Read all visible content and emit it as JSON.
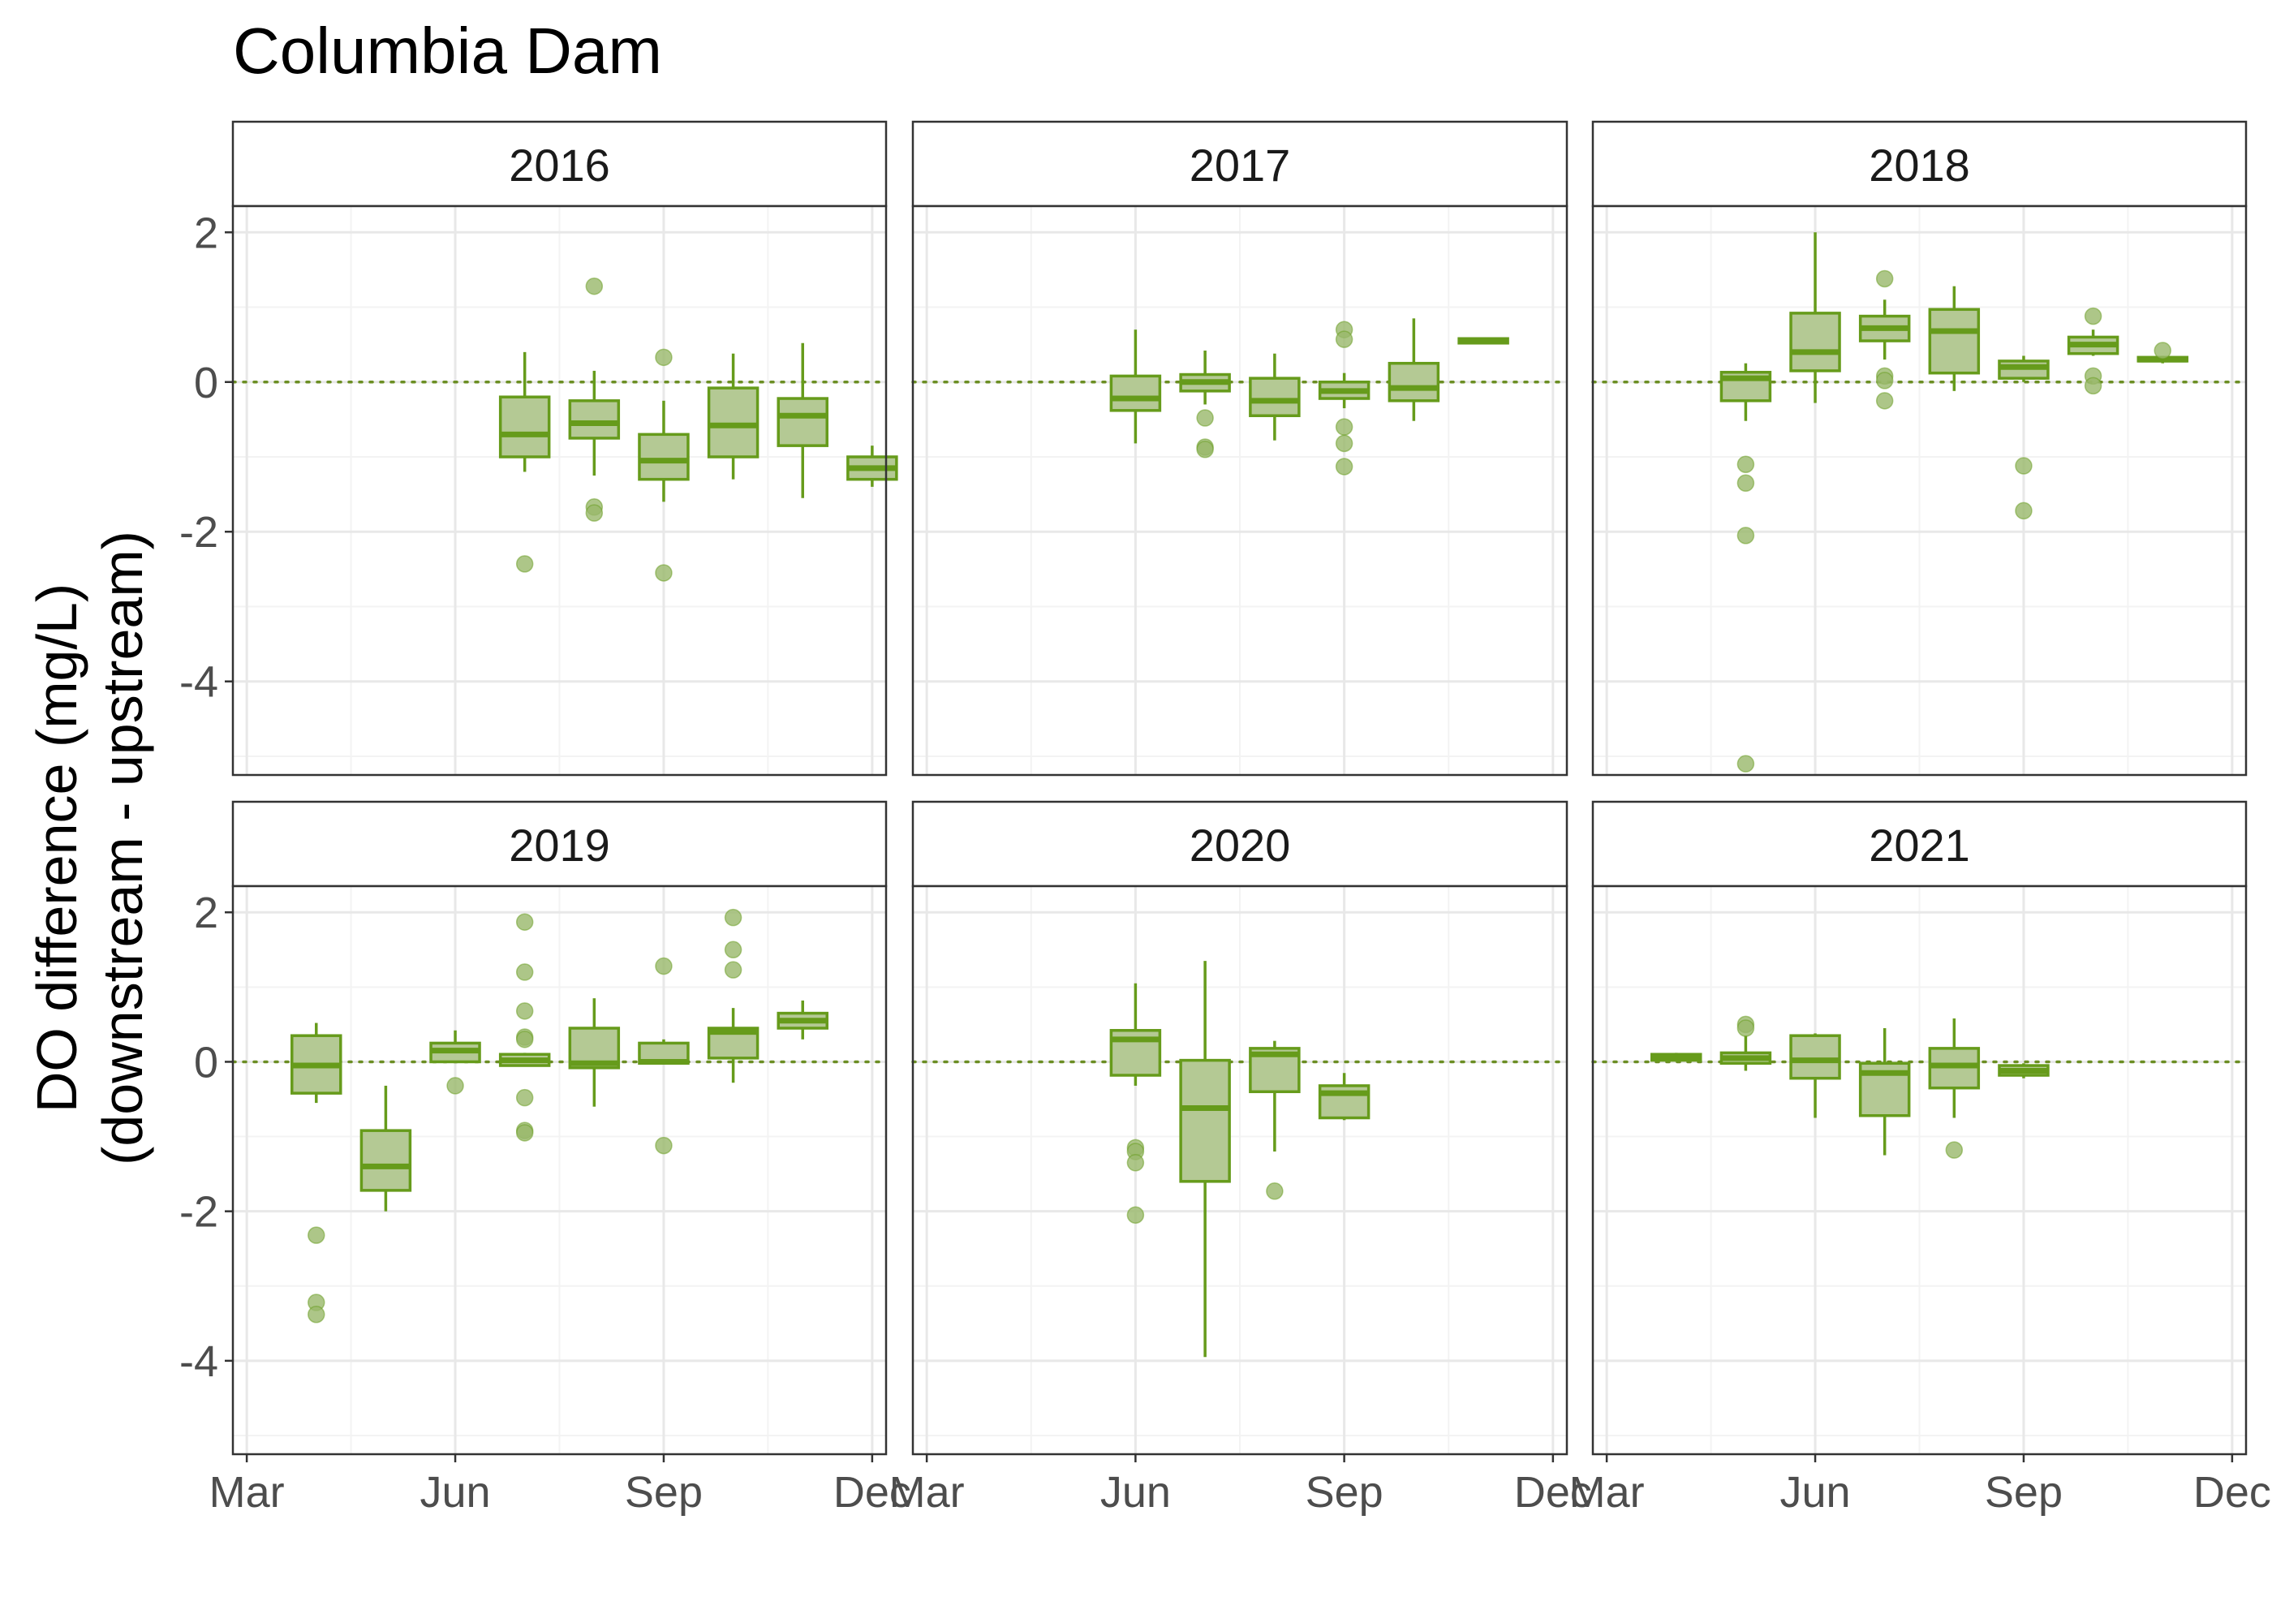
{
  "chart_data": {
    "type": "box",
    "title": "Columbia Dam",
    "ylabel_line1": "DO difference (mg/L)",
    "ylabel_line2": "(downstream - upstream)",
    "xlabel": "",
    "x_ticks": [
      "Mar",
      "Jun",
      "Sep",
      "Dec"
    ],
    "x_tick_months": [
      3,
      6,
      9,
      12
    ],
    "xlim_months": [
      2.8,
      12.2
    ],
    "y_ticks": [
      2,
      0,
      -2,
      -4
    ],
    "y_tick_labels": [
      "2",
      "0",
      "-2",
      "-4"
    ],
    "ylim": [
      -5.25,
      2.35
    ],
    "reference_line": 0,
    "grid": true,
    "colors": {
      "box_stroke": "#669b1b",
      "box_fill": "#b4c994",
      "outlier": "#98b86a",
      "reference_line": "#6b8e23",
      "strip_fill": "#ffffff",
      "grid_major": "#e8e8e8",
      "grid_minor": "#f3f3f3",
      "panel_border": "#333333"
    },
    "panels": [
      {
        "year": "2016",
        "boxes": [
          {
            "month": 7.0,
            "whisker_low": -1.2,
            "q1": -1.0,
            "median": -0.7,
            "q3": -0.2,
            "whisker_high": 0.4,
            "outliers": [
              -2.43
            ]
          },
          {
            "month": 8.0,
            "whisker_low": -1.25,
            "q1": -0.75,
            "median": -0.55,
            "q3": -0.25,
            "whisker_high": 0.15,
            "outliers": [
              1.28,
              -1.67,
              -1.75
            ]
          },
          {
            "month": 9.0,
            "whisker_low": -1.6,
            "q1": -1.3,
            "median": -1.05,
            "q3": -0.7,
            "whisker_high": -0.25,
            "outliers": [
              0.33,
              -2.55
            ]
          },
          {
            "month": 10.0,
            "whisker_low": -1.3,
            "q1": -1.0,
            "median": -0.58,
            "q3": -0.08,
            "whisker_high": 0.38,
            "outliers": []
          },
          {
            "month": 11.0,
            "whisker_low": -1.55,
            "q1": -0.85,
            "median": -0.45,
            "q3": -0.22,
            "whisker_high": 0.52,
            "outliers": []
          },
          {
            "month": 12.0,
            "whisker_low": -1.4,
            "q1": -1.3,
            "median": -1.15,
            "q3": -1.0,
            "whisker_high": -0.85,
            "outliers": []
          }
        ]
      },
      {
        "year": "2017",
        "boxes": [
          {
            "month": 6.0,
            "whisker_low": -0.82,
            "q1": -0.38,
            "median": -0.22,
            "q3": 0.08,
            "whisker_high": 0.7,
            "outliers": []
          },
          {
            "month": 7.0,
            "whisker_low": -0.3,
            "q1": -0.12,
            "median": 0.0,
            "q3": 0.1,
            "whisker_high": 0.42,
            "outliers": [
              -0.48,
              -0.87,
              -0.9
            ]
          },
          {
            "month": 8.0,
            "whisker_low": -0.78,
            "q1": -0.45,
            "median": -0.25,
            "q3": 0.05,
            "whisker_high": 0.38,
            "outliers": []
          },
          {
            "month": 9.0,
            "whisker_low": -0.35,
            "q1": -0.22,
            "median": -0.12,
            "q3": 0.0,
            "whisker_high": 0.12,
            "outliers": [
              0.7,
              0.57,
              -0.6,
              -0.82,
              -1.13
            ]
          },
          {
            "month": 10.0,
            "whisker_low": -0.52,
            "q1": -0.25,
            "median": -0.08,
            "q3": 0.25,
            "whisker_high": 0.85,
            "outliers": []
          },
          {
            "month": 11.0,
            "whisker_low": 0.52,
            "q1": 0.52,
            "median": 0.55,
            "q3": 0.58,
            "whisker_high": 0.58,
            "outliers": []
          }
        ]
      },
      {
        "year": "2018",
        "boxes": [
          {
            "month": 5.0,
            "whisker_low": -0.52,
            "q1": -0.25,
            "median": 0.05,
            "q3": 0.13,
            "whisker_high": 0.25,
            "outliers": [
              -1.1,
              -1.35,
              -2.05,
              -5.1
            ]
          },
          {
            "month": 6.0,
            "whisker_low": -0.28,
            "q1": 0.15,
            "median": 0.4,
            "q3": 0.92,
            "whisker_high": 2.0,
            "outliers": []
          },
          {
            "month": 7.0,
            "whisker_low": 0.3,
            "q1": 0.55,
            "median": 0.72,
            "q3": 0.88,
            "whisker_high": 1.1,
            "outliers": [
              1.38,
              0.08,
              0.02,
              -0.25
            ]
          },
          {
            "month": 8.0,
            "whisker_low": -0.12,
            "q1": 0.12,
            "median": 0.68,
            "q3": 0.97,
            "whisker_high": 1.28,
            "outliers": []
          },
          {
            "month": 9.0,
            "whisker_low": 0.0,
            "q1": 0.05,
            "median": 0.2,
            "q3": 0.28,
            "whisker_high": 0.35,
            "outliers": [
              -1.12,
              -1.72
            ]
          },
          {
            "month": 10.0,
            "whisker_low": 0.35,
            "q1": 0.38,
            "median": 0.5,
            "q3": 0.6,
            "whisker_high": 0.7,
            "outliers": [
              0.88,
              0.08,
              -0.05
            ]
          },
          {
            "month": 11.0,
            "whisker_low": 0.25,
            "q1": 0.28,
            "median": 0.3,
            "q3": 0.33,
            "whisker_high": 0.35,
            "outliers": [
              0.42
            ]
          }
        ]
      },
      {
        "year": "2019",
        "boxes": [
          {
            "month": 4.0,
            "whisker_low": -0.55,
            "q1": -0.42,
            "median": -0.05,
            "q3": 0.35,
            "whisker_high": 0.52,
            "outliers": [
              -2.32,
              -3.22,
              -3.38
            ]
          },
          {
            "month": 5.0,
            "whisker_low": -2.0,
            "q1": -1.72,
            "median": -1.4,
            "q3": -0.92,
            "whisker_high": -0.32,
            "outliers": []
          },
          {
            "month": 6.0,
            "whisker_low": 0.0,
            "q1": 0.0,
            "median": 0.15,
            "q3": 0.25,
            "whisker_high": 0.42,
            "outliers": [
              -0.32
            ]
          },
          {
            "month": 7.0,
            "whisker_low": -0.05,
            "q1": -0.05,
            "median": 0.02,
            "q3": 0.1,
            "whisker_high": 0.12,
            "outliers": [
              1.87,
              1.2,
              0.68,
              0.33,
              0.3,
              -0.48,
              -0.92,
              -0.95
            ]
          },
          {
            "month": 8.0,
            "whisker_low": -0.6,
            "q1": -0.08,
            "median": -0.02,
            "q3": 0.45,
            "whisker_high": 0.85,
            "outliers": []
          },
          {
            "month": 9.0,
            "whisker_low": -0.02,
            "q1": -0.02,
            "median": 0.0,
            "q3": 0.25,
            "whisker_high": 0.3,
            "outliers": [
              1.28,
              -1.12
            ]
          },
          {
            "month": 10.0,
            "whisker_low": -0.28,
            "q1": 0.05,
            "median": 0.4,
            "q3": 0.45,
            "whisker_high": 0.72,
            "outliers": [
              1.93,
              1.5,
              1.23
            ]
          },
          {
            "month": 11.0,
            "whisker_low": 0.3,
            "q1": 0.45,
            "median": 0.55,
            "q3": 0.65,
            "whisker_high": 0.82,
            "outliers": []
          }
        ]
      },
      {
        "year": "2020",
        "boxes": [
          {
            "month": 6.0,
            "whisker_low": -0.32,
            "q1": -0.18,
            "median": 0.3,
            "q3": 0.42,
            "whisker_high": 1.05,
            "outliers": [
              -1.15,
              -1.2,
              -1.35,
              -2.05
            ]
          },
          {
            "month": 7.0,
            "whisker_low": -3.95,
            "q1": -1.6,
            "median": -0.62,
            "q3": 0.02,
            "whisker_high": 1.35,
            "outliers": []
          },
          {
            "month": 8.0,
            "whisker_low": -1.2,
            "q1": -0.4,
            "median": 0.1,
            "q3": 0.18,
            "whisker_high": 0.28,
            "outliers": [
              -1.73
            ]
          },
          {
            "month": 9.0,
            "whisker_low": -0.78,
            "q1": -0.75,
            "median": -0.42,
            "q3": -0.32,
            "whisker_high": -0.15,
            "outliers": []
          }
        ]
      },
      {
        "year": "2021",
        "boxes": [
          {
            "month": 4.0,
            "whisker_low": 0.0,
            "q1": 0.02,
            "median": 0.06,
            "q3": 0.1,
            "whisker_high": 0.12,
            "outliers": []
          },
          {
            "month": 5.0,
            "whisker_low": -0.12,
            "q1": -0.02,
            "median": 0.05,
            "q3": 0.12,
            "whisker_high": 0.35,
            "outliers": [
              0.5,
              0.45
            ]
          },
          {
            "month": 6.0,
            "whisker_low": -0.75,
            "q1": -0.22,
            "median": 0.02,
            "q3": 0.35,
            "whisker_high": 0.38,
            "outliers": []
          },
          {
            "month": 7.0,
            "whisker_low": -1.25,
            "q1": -0.72,
            "median": -0.15,
            "q3": -0.02,
            "whisker_high": 0.45,
            "outliers": []
          },
          {
            "month": 8.0,
            "whisker_low": -0.75,
            "q1": -0.35,
            "median": -0.05,
            "q3": 0.18,
            "whisker_high": 0.58,
            "outliers": [
              -1.18
            ]
          },
          {
            "month": 9.0,
            "whisker_low": -0.22,
            "q1": -0.18,
            "median": -0.12,
            "q3": -0.05,
            "whisker_high": -0.02,
            "outliers": []
          }
        ]
      }
    ]
  }
}
